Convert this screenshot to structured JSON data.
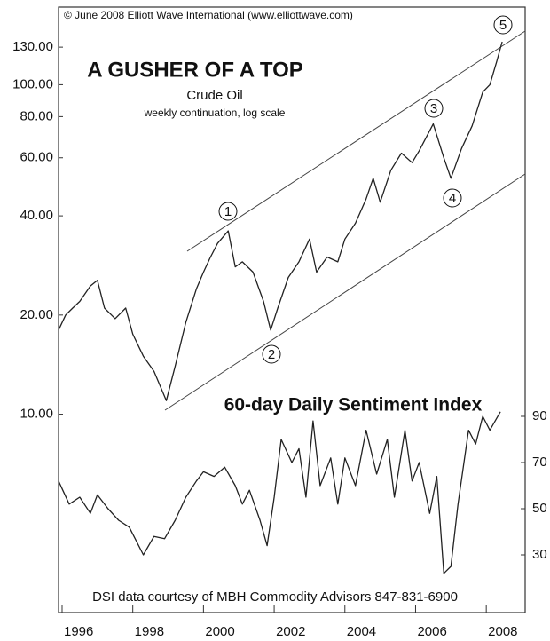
{
  "chart_data": {
    "type": "line",
    "title": "A GUSHER OF A TOP",
    "note": "weekly continuation, log scale",
    "copyright": "© June 2008 Elliott Wave International (www.elliottwave.com)",
    "credit": "DSI data courtesy of MBH Commodity Advisors 847-831-6900",
    "waves": [
      "1",
      "2",
      "3",
      "4",
      "5"
    ],
    "yscale": "log",
    "xlim": [
      1995.9,
      2009.1
    ],
    "xticks": [
      1996,
      1998,
      2000,
      2002,
      2004,
      2006,
      2008
    ],
    "ylim": [
      2.5,
      172
    ],
    "yticks": [
      {
        "value": 10,
        "label": "10.00"
      },
      {
        "value": 20,
        "label": "20.00"
      },
      {
        "value": 40,
        "label": "40.00"
      },
      {
        "value": 60,
        "label": "60.00"
      },
      {
        "value": 80,
        "label": "80.00"
      },
      {
        "value": 100,
        "label": "100.00"
      },
      {
        "value": 130,
        "label": "130.00"
      }
    ],
    "y2lim": [
      5,
      267.3
    ],
    "y2ticks": [
      30,
      50,
      70,
      90
    ],
    "series": [
      {
        "name": "Crude Oil",
        "color": "#222222",
        "x": [
          1995.9,
          1996.1,
          1996.3,
          1996.5,
          1996.8,
          1997.0,
          1997.2,
          1997.5,
          1997.8,
          1998.0,
          1998.3,
          1998.6,
          1998.95,
          1999.2,
          1999.5,
          1999.8,
          2000.0,
          2000.2,
          2000.4,
          2000.7,
          2000.9,
          2001.1,
          2001.4,
          2001.7,
          2001.9,
          2002.1,
          2002.4,
          2002.7,
          2003.0,
          2003.2,
          2003.5,
          2003.8,
          2004.0,
          2004.3,
          2004.6,
          2004.8,
          2005.0,
          2005.3,
          2005.6,
          2005.9,
          2006.1,
          2006.5,
          2006.8,
          2007.0,
          2007.3,
          2007.6,
          2007.9,
          2008.1,
          2008.3,
          2008.45
        ],
        "values": [
          18,
          20,
          21,
          22,
          24.5,
          25.5,
          21,
          19.5,
          21,
          17.5,
          15,
          13.5,
          11,
          14,
          19,
          24,
          27,
          30,
          33,
          36,
          28,
          29,
          27,
          22,
          18,
          21,
          26,
          29,
          34,
          27,
          30,
          29,
          34,
          38,
          45,
          52,
          44,
          55,
          62,
          58,
          63,
          76,
          60,
          52,
          64,
          75,
          95,
          100,
          118,
          135
        ]
      },
      {
        "name": "60-day Daily Sentiment Index",
        "color": "#222222",
        "axis": "y2",
        "x": [
          1995.9,
          1996.2,
          1996.5,
          1996.8,
          1997.0,
          1997.3,
          1997.6,
          1997.9,
          1998.1,
          1998.3,
          1998.6,
          1998.9,
          1999.2,
          1999.5,
          1999.8,
          2000.0,
          2000.3,
          2000.6,
          2000.9,
          2001.1,
          2001.3,
          2001.6,
          2001.8,
          2002.0,
          2002.2,
          2002.5,
          2002.7,
          2002.9,
          2003.1,
          2003.3,
          2003.6,
          2003.8,
          2004.0,
          2004.3,
          2004.6,
          2004.9,
          2005.2,
          2005.4,
          2005.7,
          2005.9,
          2006.1,
          2006.4,
          2006.6,
          2006.8,
          2007.0,
          2007.2,
          2007.5,
          2007.7,
          2007.9,
          2008.1,
          2008.4
        ],
        "values": [
          62,
          52,
          55,
          48,
          56,
          50,
          45,
          42,
          36,
          30,
          38,
          37,
          45,
          55,
          62,
          66,
          64,
          68,
          60,
          52,
          58,
          45,
          34,
          55,
          80,
          70,
          76,
          55,
          88,
          60,
          72,
          52,
          72,
          60,
          84,
          65,
          80,
          55,
          84,
          62,
          70,
          48,
          64,
          22,
          25,
          52,
          84,
          78,
          90,
          84,
          92
        ]
      }
    ]
  }
}
